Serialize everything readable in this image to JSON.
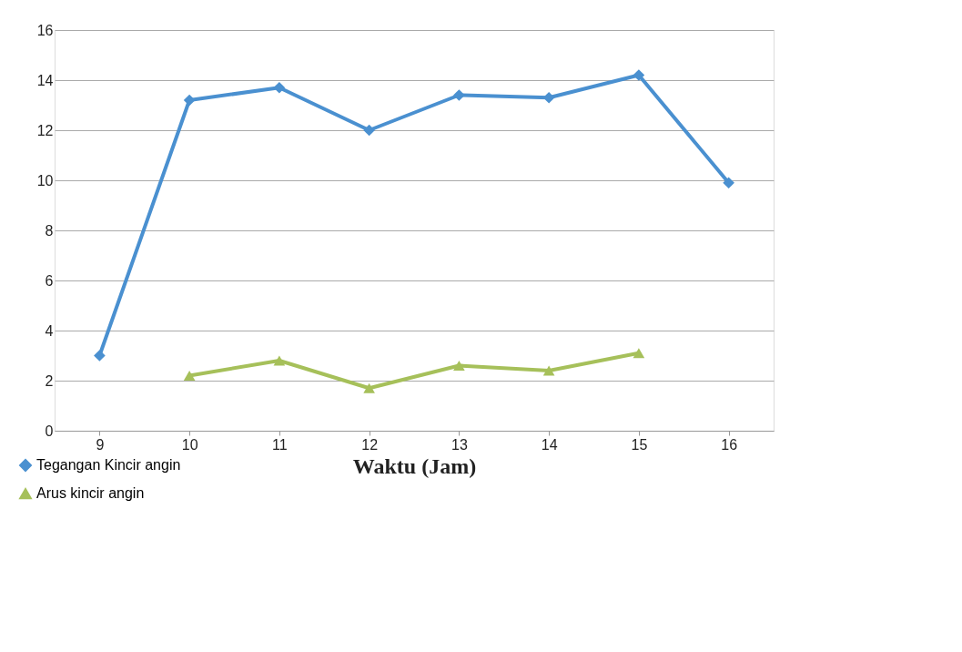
{
  "chart_data": {
    "type": "line",
    "xlabel": "Waktu (Jam)",
    "categories": [
      "9",
      "10",
      "11",
      "12",
      "13",
      "14",
      "15",
      "16"
    ],
    "series": [
      {
        "name": "Tegangan Kincir angin",
        "color": "#4a90d0",
        "marker": "diamond",
        "values": [
          3.0,
          13.2,
          13.7,
          12.0,
          13.4,
          13.3,
          14.2,
          9.9
        ]
      },
      {
        "name": "Arus kincir angin",
        "color": "#a6c05a",
        "marker": "triangle",
        "values": [
          null,
          2.2,
          2.8,
          1.7,
          2.6,
          2.4,
          3.1,
          null
        ]
      }
    ],
    "ylim": [
      0,
      16
    ],
    "yticks": [
      0,
      2,
      4,
      6,
      8,
      10,
      12,
      14,
      16
    ],
    "grid": "y",
    "legend": "bottom left"
  }
}
